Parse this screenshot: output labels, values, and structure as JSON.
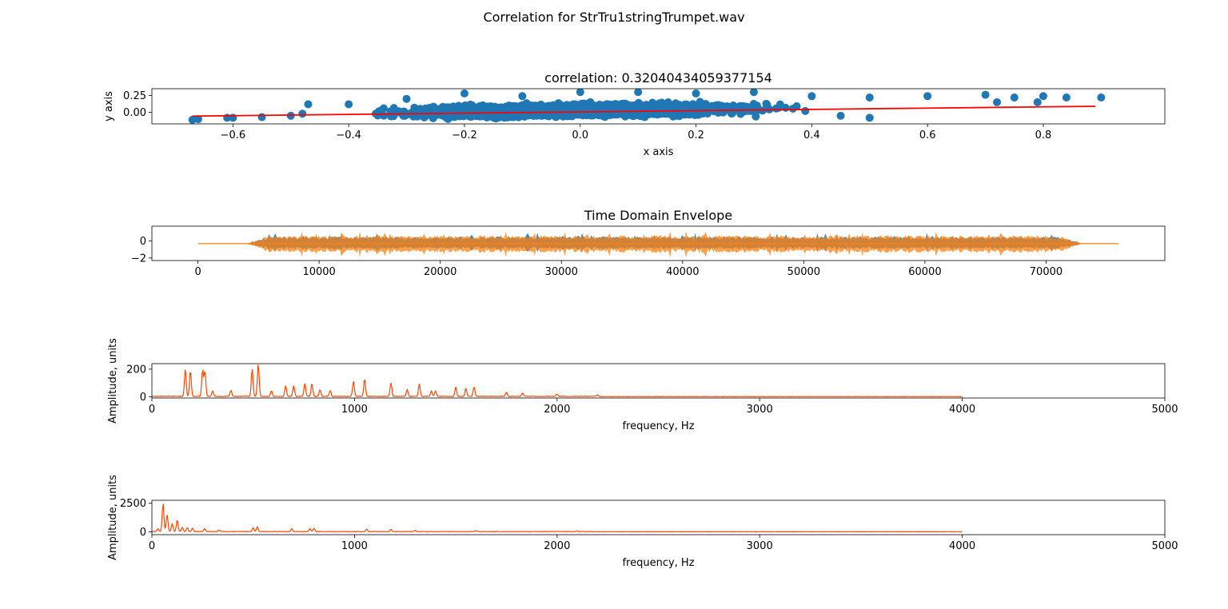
{
  "figure": {
    "suptitle": "Correlation for StrTru1stringTrumpet.wav"
  },
  "chart_data": [
    {
      "type": "scatter",
      "title": "correlation: 0.32040434059377154",
      "xlabel": "x axis",
      "ylabel": "y axis",
      "xlim": [
        -0.74,
        1.01
      ],
      "ylim": [
        -0.17,
        0.35
      ],
      "xticks": [
        "−0.6",
        "−0.4",
        "−0.2",
        "0.0",
        "0.2",
        "0.4",
        "0.6",
        "0.8"
      ],
      "yticks": [
        "0.00",
        "0.25"
      ],
      "grid": false,
      "series": [
        {
          "color": "#1f77b4",
          "points_approx": [
            [
              -0.67,
              -0.11
            ],
            [
              -0.66,
              -0.1
            ],
            [
              -0.61,
              -0.08
            ],
            [
              -0.6,
              -0.08
            ],
            [
              -0.55,
              -0.07
            ],
            [
              -0.5,
              -0.05
            ],
            [
              -0.48,
              -0.02
            ],
            [
              -0.47,
              0.12
            ],
            [
              -0.4,
              0.12
            ],
            [
              -0.3,
              0.2
            ],
            [
              -0.2,
              0.28
            ],
            [
              -0.1,
              0.24
            ],
            [
              0.0,
              0.3
            ],
            [
              0.1,
              0.3
            ],
            [
              0.2,
              0.28
            ],
            [
              0.3,
              0.3
            ],
            [
              0.4,
              0.24
            ],
            [
              0.5,
              0.22
            ],
            [
              0.6,
              0.24
            ],
            [
              0.7,
              0.26
            ],
            [
              0.72,
              0.15
            ],
            [
              0.75,
              0.22
            ],
            [
              0.79,
              0.15
            ],
            [
              0.8,
              0.24
            ],
            [
              0.84,
              0.22
            ],
            [
              0.9,
              0.22
            ],
            [
              0.45,
              -0.05
            ],
            [
              0.5,
              -0.08
            ]
          ]
        }
      ],
      "fit_line": {
        "color": "#ff0000",
        "x": [
          -0.67,
          0.89
        ],
        "y": [
          -0.055,
          0.09
        ]
      }
    },
    {
      "type": "line",
      "title": "Time Domain Envelope",
      "xlim": [
        -3800,
        79800
      ],
      "ylim": [
        -2.3,
        1.75
      ],
      "xticks": [
        "0",
        "10000",
        "20000",
        "30000",
        "40000",
        "50000",
        "60000",
        "70000"
      ],
      "yticks": [
        "−2",
        "0"
      ],
      "grid": false,
      "series": [
        {
          "color": "#1f77b4",
          "x_range": [
            0,
            76000
          ],
          "peak_amplitude": 1.5
        },
        {
          "color": "#ff7f0e",
          "x_range": [
            0,
            76000
          ],
          "peak_amplitude": 1.6
        }
      ]
    },
    {
      "type": "line",
      "xlabel": "frequency, Hz",
      "ylabel": "Amplitude, units",
      "xlim": [
        0,
        5000
      ],
      "ylim": [
        -10,
        240
      ],
      "xticks": [
        "0",
        "1000",
        "2000",
        "3000",
        "4000",
        "5000"
      ],
      "yticks": [
        "0",
        "200"
      ],
      "series": [
        {
          "color": "#ff4500",
          "x_max": 4000,
          "peaks": [
            [
              165,
              200
            ],
            [
              190,
              190
            ],
            [
              250,
              195
            ],
            [
              262,
              185
            ],
            [
              300,
              40
            ],
            [
              390,
              45
            ],
            [
              495,
              205
            ],
            [
              525,
              235
            ],
            [
              590,
              40
            ],
            [
              660,
              80
            ],
            [
              700,
              80
            ],
            [
              755,
              95
            ],
            [
              790,
              95
            ],
            [
              830,
              50
            ],
            [
              880,
              40
            ],
            [
              995,
              110
            ],
            [
              1050,
              130
            ],
            [
              1180,
              100
            ],
            [
              1260,
              50
            ],
            [
              1320,
              90
            ],
            [
              1380,
              40
            ],
            [
              1400,
              40
            ],
            [
              1500,
              70
            ],
            [
              1550,
              60
            ],
            [
              1590,
              70
            ],
            [
              1750,
              30
            ],
            [
              1830,
              25
            ],
            [
              2000,
              18
            ],
            [
              2200,
              12
            ]
          ]
        }
      ]
    },
    {
      "type": "line",
      "xlabel": "frequency, Hz",
      "ylabel": "Amplitude, units",
      "xlim": [
        0,
        5000
      ],
      "ylim": [
        -250,
        2750
      ],
      "xticks": [
        "0",
        "1000",
        "2000",
        "3000",
        "4000",
        "5000"
      ],
      "yticks": [
        "0",
        "2500"
      ],
      "series": [
        {
          "color": "#ff4500",
          "x_max": 4000,
          "peaks": [
            [
              30,
              250
            ],
            [
              55,
              2500
            ],
            [
              75,
              1500
            ],
            [
              100,
              700
            ],
            [
              125,
              1000
            ],
            [
              150,
              400
            ],
            [
              175,
              350
            ],
            [
              200,
              300
            ],
            [
              260,
              250
            ],
            [
              330,
              150
            ],
            [
              500,
              350
            ],
            [
              520,
              400
            ],
            [
              690,
              250
            ],
            [
              780,
              250
            ],
            [
              800,
              280
            ],
            [
              1060,
              200
            ],
            [
              1180,
              180
            ],
            [
              1300,
              120
            ],
            [
              1600,
              80
            ],
            [
              2100,
              60
            ]
          ]
        }
      ]
    }
  ]
}
